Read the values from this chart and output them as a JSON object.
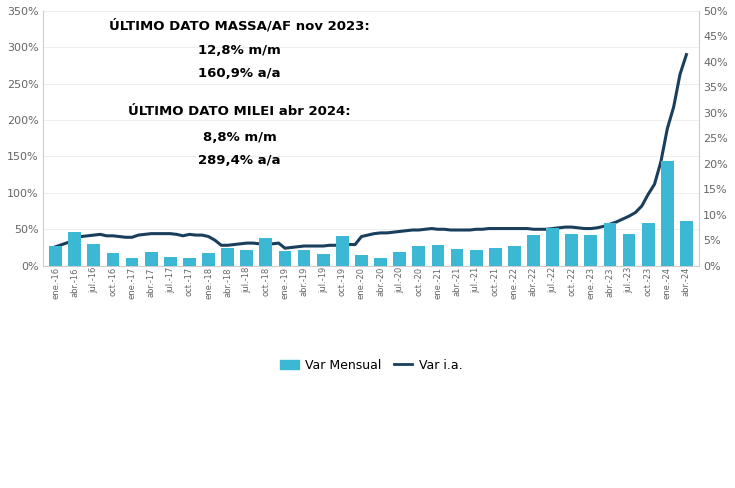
{
  "title_text1": "ÚLTIMO DATO MASSA/AF nov 2023:",
  "title_text2": "12,8% m/m",
  "title_text3": "160,9% a/a",
  "title_text4": "ÚLTIMO DATO MILEI abr 2024:",
  "title_text5": "8,8% m/m",
  "title_text6": "289,4% a/a",
  "bar_color": "#3db8d4",
  "line_color": "#1a3f5c",
  "background_color": "#ffffff",
  "ylim_left": [
    0,
    350
  ],
  "ylim_right": [
    0,
    50
  ],
  "legend_labels": [
    "Var Mensual",
    "Var i.a."
  ],
  "labels": [
    "ene.-16",
    "abr.-16",
    "jul.-16",
    "oct.-16",
    "ene.-17",
    "abr.-17",
    "jul.-17",
    "oct.-17",
    "ene.-18",
    "abr.-18",
    "jul.-18",
    "oct.-18",
    "ene.-19",
    "abr.-19",
    "jul.-19",
    "oct.-19",
    "ene.-20",
    "abr.-20",
    "jul.-20",
    "oct.-20",
    "ene.-21",
    "abr.-21",
    "jul.-21",
    "oct.-21",
    "ene.-22",
    "abr.-22",
    "jul.-22",
    "oct.-22",
    "ene.-23",
    "abr.-23",
    "jul.-23",
    "oct.-23",
    "ene.-24",
    "abr.-24"
  ],
  "bar_values": [
    3.8,
    6.7,
    4.2,
    2.4,
    1.6,
    2.6,
    1.7,
    1.5,
    2.4,
    3.4,
    3.1,
    5.4,
    2.9,
    3.1,
    2.2,
    5.9,
    2.0,
    1.5,
    2.7,
    3.8,
    4.0,
    3.3,
    3.0,
    3.5,
    3.9,
    6.0,
    7.4,
    6.3,
    6.0,
    8.4,
    6.3,
    8.3,
    20.6,
    8.8
  ],
  "line_monthly": [
    26,
    29,
    32,
    38,
    40,
    41,
    42,
    43,
    41,
    41,
    40,
    39,
    39,
    42,
    43,
    44,
    44,
    44,
    44,
    43,
    41,
    43,
    42,
    42,
    40,
    35,
    28,
    28,
    29,
    30,
    31,
    31,
    30,
    30,
    30,
    31,
    24,
    25,
    26,
    27,
    27,
    27,
    27,
    28,
    28,
    28,
    29,
    29,
    40,
    42,
    44,
    45,
    45,
    46,
    47,
    48,
    49,
    49,
    50,
    51,
    50,
    50,
    49,
    49,
    49,
    49,
    50,
    50,
    51,
    51,
    51,
    51,
    51,
    51,
    51,
    50,
    50,
    50,
    51,
    52,
    53,
    53,
    52,
    51,
    51,
    52,
    54,
    57,
    60,
    64,
    68,
    73,
    82,
    98,
    112,
    143,
    188,
    218,
    263,
    290
  ]
}
